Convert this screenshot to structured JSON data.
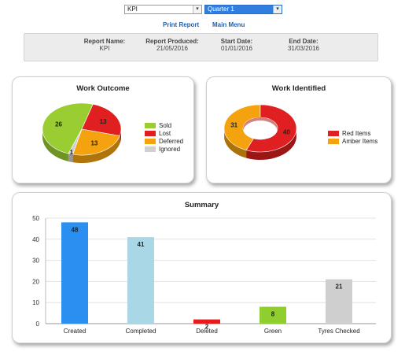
{
  "controls": {
    "kpi_select": "KPI",
    "quarter_select": "Quarter 1",
    "print_report": "Print Report",
    "main_menu": "Main Menu"
  },
  "report_info": {
    "name_label": "Report Name:",
    "name_value": "KPI",
    "produced_label": "Report Produced:",
    "produced_value": "21/05/2016",
    "start_label": "Start Date:",
    "start_value": "01/01/2016",
    "end_label": "End Date:",
    "end_value": "31/03/2016"
  },
  "chart_data": [
    {
      "type": "pie",
      "title": "Work Outcome",
      "labels": [
        "Sold",
        "Lost",
        "Deferred",
        "Ignored"
      ],
      "values": [
        26,
        13,
        13,
        1
      ],
      "colors": [
        "#9acd32",
        "#e02020",
        "#f4a30e",
        "#d0d0d0"
      ],
      "legend": "right"
    },
    {
      "type": "pie",
      "title": "Work Identified",
      "labels": [
        "Red Items",
        "Amber Items"
      ],
      "values": [
        40,
        31
      ],
      "colors": [
        "#e02020",
        "#f4a30e"
      ],
      "legend": "right"
    },
    {
      "type": "bar",
      "title": "Summary",
      "categories": [
        "Created",
        "Completed",
        "Deleted",
        "Green",
        "Tyres Checked"
      ],
      "values": [
        48,
        41,
        2,
        8,
        21
      ],
      "colors": [
        "#2a8ff0",
        "#a9d7e6",
        "#e61b1b",
        "#8fce2e",
        "#cfcfcf"
      ],
      "ylim": [
        0,
        50
      ],
      "yticks": [
        0,
        10,
        20,
        30,
        40,
        50
      ],
      "grid": true
    }
  ]
}
